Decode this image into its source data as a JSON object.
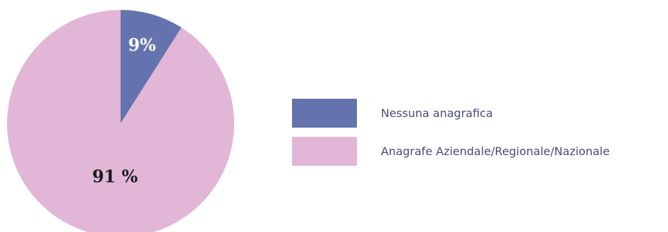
{
  "chart_data": {
    "type": "pie",
    "title": "",
    "slices": [
      {
        "label": "Nessuna anagrafica",
        "value": 9,
        "display": "9%",
        "color": "#6473ad"
      },
      {
        "label": "Anagrafe Aziendale/Regionale/Nazionale",
        "value": 91,
        "display": "91 %",
        "color": "#e2b6d7"
      }
    ],
    "start_angle_deg": 0,
    "direction": "clockwise",
    "legend_position": "right"
  }
}
